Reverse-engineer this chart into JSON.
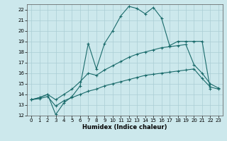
{
  "xlabel": "Humidex (Indice chaleur)",
  "bg_color": "#cce8ec",
  "grid_color": "#aacdd4",
  "line_color": "#1a6b6b",
  "xlim": [
    -0.5,
    23.5
  ],
  "ylim": [
    12,
    22.5
  ],
  "xticks": [
    0,
    1,
    2,
    3,
    4,
    5,
    6,
    7,
    8,
    9,
    10,
    11,
    12,
    13,
    14,
    15,
    16,
    17,
    18,
    19,
    20,
    21,
    22,
    23
  ],
  "yticks": [
    12,
    13,
    14,
    15,
    16,
    17,
    18,
    19,
    20,
    21,
    22
  ],
  "line1_x": [
    0,
    1,
    2,
    3,
    4,
    5,
    6,
    7,
    8,
    9,
    10,
    11,
    12,
    13,
    14,
    15,
    16,
    17,
    18,
    19,
    20,
    21,
    22
  ],
  "line1_y": [
    13.5,
    13.7,
    14.0,
    12.1,
    13.2,
    13.8,
    14.8,
    18.8,
    16.4,
    18.8,
    20.0,
    21.4,
    22.3,
    22.1,
    21.6,
    22.2,
    21.2,
    18.6,
    19.0,
    19.0,
    19.0,
    19.0,
    14.5
  ],
  "line2_x": [
    0,
    1,
    2,
    3,
    4,
    5,
    6,
    7,
    8,
    9,
    10,
    11,
    12,
    13,
    14,
    15,
    16,
    17,
    18,
    19,
    20,
    21,
    22,
    23
  ],
  "line2_y": [
    13.5,
    13.7,
    14.0,
    13.5,
    14.0,
    14.5,
    15.2,
    16.0,
    15.8,
    16.3,
    16.7,
    17.1,
    17.5,
    17.8,
    18.0,
    18.2,
    18.4,
    18.5,
    18.6,
    18.7,
    16.8,
    16.0,
    15.0,
    14.6
  ],
  "line3_x": [
    0,
    1,
    2,
    3,
    4,
    5,
    6,
    7,
    8,
    9,
    10,
    11,
    12,
    13,
    14,
    15,
    16,
    17,
    18,
    19,
    20,
    21,
    22,
    23
  ],
  "line3_y": [
    13.5,
    13.6,
    13.8,
    12.9,
    13.4,
    13.7,
    14.0,
    14.3,
    14.5,
    14.8,
    15.0,
    15.2,
    15.4,
    15.6,
    15.8,
    15.9,
    16.0,
    16.1,
    16.2,
    16.3,
    16.4,
    15.5,
    14.7,
    14.5
  ]
}
